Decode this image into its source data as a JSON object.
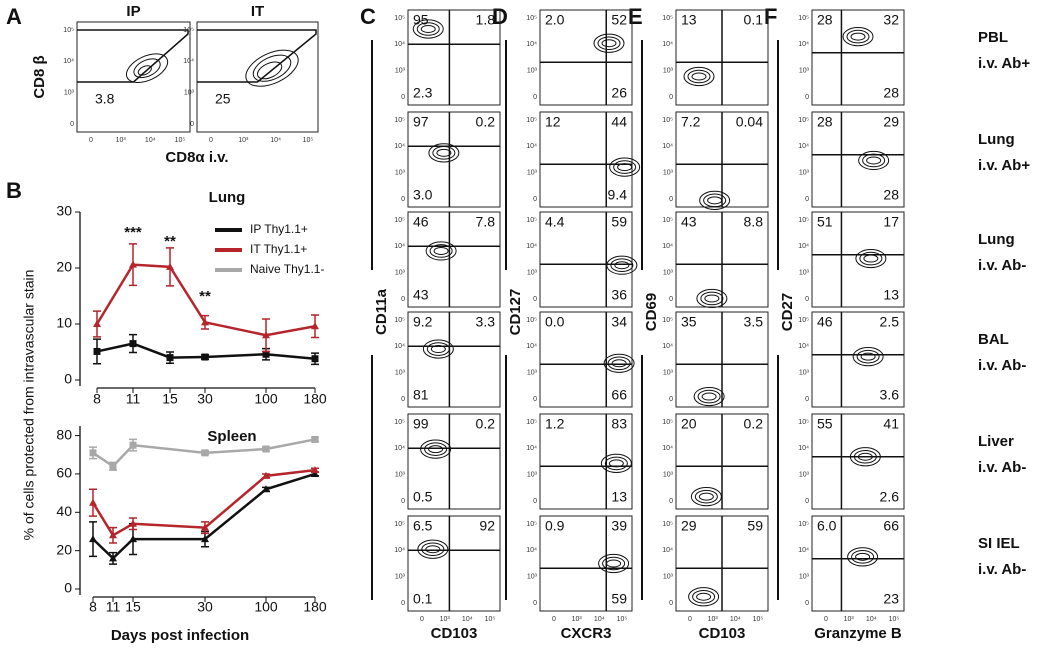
{
  "panel_letters": [
    "A",
    "B",
    "C",
    "D",
    "E",
    "F"
  ],
  "panel_a": {
    "y_label": "CD8 β",
    "x_label": "CD8α i.v.",
    "plots": [
      {
        "title": "IP",
        "value": "3.8"
      },
      {
        "title": "IT",
        "value": "25"
      }
    ]
  },
  "flow_ticks": [
    "0",
    "10³",
    "10⁴",
    "10⁵"
  ],
  "b_y_label": "% of cells protected from intravascular stain",
  "chart_data": [
    {
      "type": "line",
      "title": "Lung",
      "categories": [
        "8",
        "11",
        "15",
        "30",
        "100",
        "180"
      ],
      "ylim": [
        0,
        30
      ],
      "yticks": [
        0,
        10,
        20,
        30
      ],
      "legend": "upper right",
      "series": [
        {
          "name": "IP Thy1.1+",
          "color": "#111111",
          "marker": "square",
          "values": [
            5.1,
            6.5,
            4.0,
            4.1,
            4.6,
            3.8
          ],
          "errors": [
            2.2,
            1.6,
            1.0,
            0.4,
            1.0,
            1.0
          ]
        },
        {
          "name": "IT Thy1.1+",
          "color": "#b5252b",
          "marker": "triangle",
          "values": [
            10.0,
            20.6,
            20.2,
            10.3,
            8.0,
            9.6
          ],
          "errors": [
            2.3,
            3.7,
            3.4,
            1.2,
            2.9,
            2.0
          ]
        },
        {
          "name": "Naive Thy1.1-",
          "color": "#a8a8a8",
          "marker": "square",
          "values": [
            null,
            null,
            null,
            null,
            null,
            null
          ],
          "errors": [
            null,
            null,
            null,
            null,
            null,
            null
          ]
        }
      ],
      "annotations": [
        {
          "label": "***",
          "x": "11",
          "y": 26.2
        },
        {
          "label": "**",
          "x": "15",
          "y": 24.6
        },
        {
          "label": "**",
          "x": "30",
          "y": 14.8
        }
      ]
    },
    {
      "type": "line",
      "title": "Spleen",
      "x_label": "Days post infection",
      "categories": [
        "8",
        "11",
        "15",
        "30",
        "100",
        "180"
      ],
      "ylim": [
        0,
        85
      ],
      "yticks": [
        0,
        20,
        40,
        60,
        80
      ],
      "series": [
        {
          "name": "IP Thy1.1+",
          "color": "#111111",
          "marker": "triangle",
          "values": [
            26,
            16,
            26,
            26,
            52,
            60
          ],
          "errors": [
            9,
            3,
            8,
            4,
            1,
            1
          ]
        },
        {
          "name": "IT Thy1.1+",
          "color": "#b5252b",
          "marker": "triangle",
          "values": [
            45,
            28,
            34,
            32,
            59,
            62
          ],
          "errors": [
            7,
            4,
            3,
            3,
            1,
            1
          ]
        },
        {
          "name": "Naive Thy1.1-",
          "color": "#a8a8a8",
          "marker": "square",
          "values": [
            71,
            64,
            75,
            71,
            73,
            78
          ],
          "errors": [
            3,
            2,
            3,
            1,
            1,
            1
          ]
        }
      ]
    }
  ],
  "row_labels": [
    {
      "tissue": "PBL",
      "stain": "i.v. Ab+"
    },
    {
      "tissue": "Lung",
      "stain": "i.v. Ab+"
    },
    {
      "tissue": "Lung",
      "stain": "i.v. Ab-"
    },
    {
      "tissue": "BAL",
      "stain": "i.v. Ab-"
    },
    {
      "tissue": "Liver",
      "stain": "i.v. Ab-"
    },
    {
      "tissue": "SI IEL",
      "stain": "i.v. Ab-"
    }
  ],
  "flow_panels": [
    {
      "y_label": "CD11a",
      "x_label": "CD103",
      "rows": [
        {
          "top_left": "95",
          "top_right": "1.8",
          "bottom_left": "2.3"
        },
        {
          "top_left": "97",
          "top_right": "0.2",
          "bottom_left": "3.0"
        },
        {
          "top_left": "46",
          "top_right": "7.8",
          "bottom_left": "43"
        },
        {
          "top_left": "9.2",
          "top_right": "3.3",
          "bottom_left": "81"
        },
        {
          "top_left": "99",
          "top_right": "0.2",
          "bottom_left": "0.5"
        },
        {
          "top_left": "6.5",
          "top_right": "92",
          "bottom_left": "0.1"
        }
      ]
    },
    {
      "y_label": "CD127",
      "x_label": "CXCR3",
      "rows": [
        {
          "top_left": "2.0",
          "top_right": "52",
          "bottom_right": "26"
        },
        {
          "top_left": "12",
          "top_right": "44",
          "bottom_right": "9.4"
        },
        {
          "top_left": "4.4",
          "top_right": "59",
          "bottom_right": "36"
        },
        {
          "top_left": "0.0",
          "top_right": "34",
          "bottom_right": "66"
        },
        {
          "top_left": "1.2",
          "top_right": "83",
          "bottom_right": "13"
        },
        {
          "top_left": "0.9",
          "top_right": "39",
          "bottom_right": "59"
        }
      ]
    },
    {
      "y_label": "CD69",
      "x_label": "CD103",
      "rows": [
        {
          "top_left": "13",
          "top_right": "0.1"
        },
        {
          "top_left": "7.2",
          "top_right": "0.04"
        },
        {
          "top_left": "43",
          "top_right": "8.8"
        },
        {
          "top_left": "35",
          "top_right": "3.5"
        },
        {
          "top_left": "20",
          "top_right": "0.2"
        },
        {
          "top_left": "29",
          "top_right": "59"
        }
      ]
    },
    {
      "y_label": "CD27",
      "x_label": "Granzyme B",
      "rows": [
        {
          "top_left": "28",
          "top_right": "32",
          "bottom_right": "28"
        },
        {
          "top_left": "28",
          "top_right": "29",
          "bottom_right": "28"
        },
        {
          "top_left": "51",
          "top_right": "17",
          "bottom_right": "13"
        },
        {
          "top_left": "46",
          "top_right": "2.5",
          "bottom_right": "3.6"
        },
        {
          "top_left": "55",
          "top_right": "41",
          "bottom_right": "2.6"
        },
        {
          "top_left": "6.0",
          "top_right": "66",
          "bottom_right": "23"
        }
      ]
    }
  ]
}
